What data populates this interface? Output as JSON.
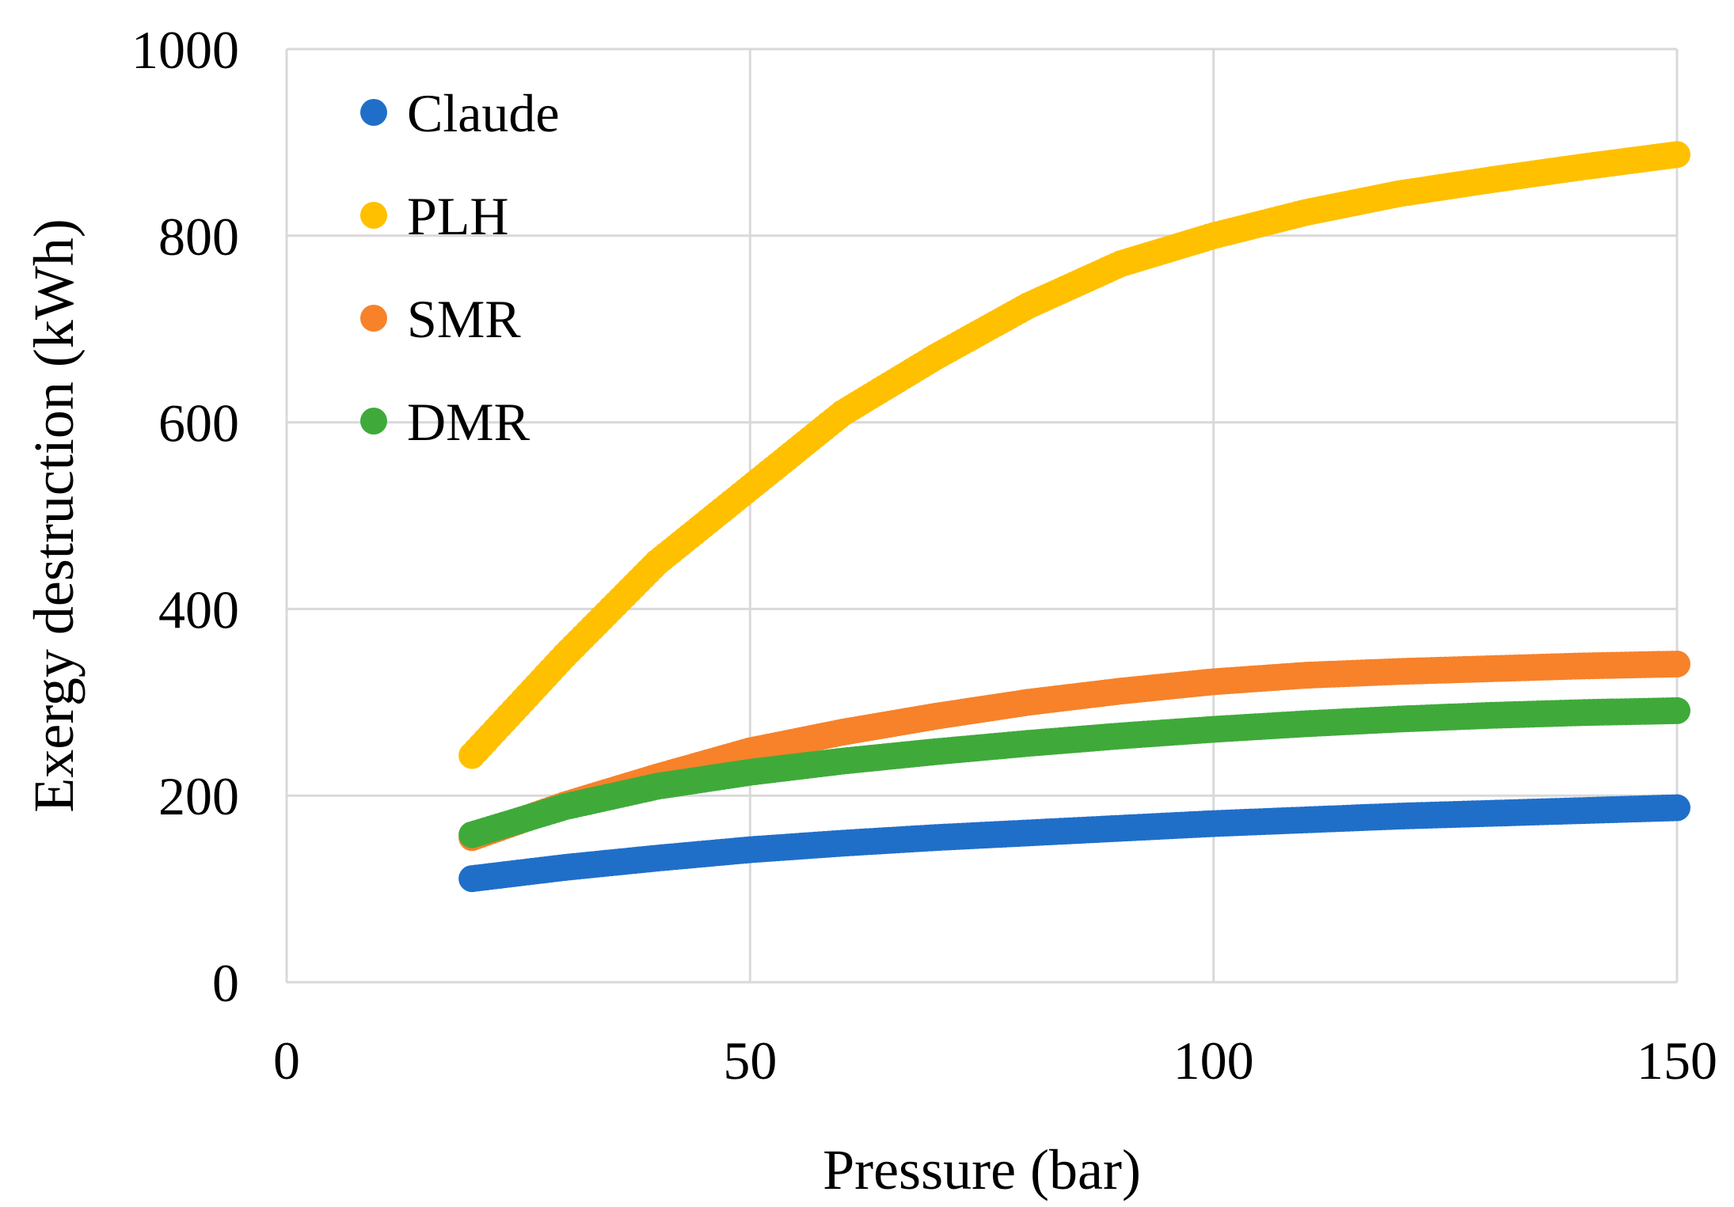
{
  "chart_data": {
    "type": "scatter",
    "title": "",
    "xlabel": "Pressure (bar)",
    "ylabel": "Exergy destruction (kWh)",
    "xlim": [
      0,
      150
    ],
    "ylim": [
      0,
      1000
    ],
    "xticks": [
      0,
      50,
      100,
      150
    ],
    "yticks": [
      0,
      200,
      400,
      600,
      800,
      1000
    ],
    "grid": true,
    "legend_position": "top-left",
    "x": [
      20,
      30,
      40,
      50,
      60,
      70,
      80,
      90,
      100,
      110,
      120,
      130,
      140,
      150
    ],
    "series": [
      {
        "name": "Claude",
        "color": "#1F6FC9",
        "values": [
          111,
          123,
          133,
          142,
          149,
          155,
          160,
          165,
          170,
          174,
          178,
          181,
          184,
          187
        ]
      },
      {
        "name": "PLH",
        "color": "#FFC000",
        "values": [
          243,
          350,
          450,
          530,
          610,
          670,
          725,
          770,
          800,
          825,
          845,
          860,
          874,
          887
        ]
      },
      {
        "name": "SMR",
        "color": "#F7822A",
        "values": [
          155,
          190,
          220,
          248,
          268,
          285,
          300,
          312,
          322,
          329,
          333,
          336,
          339,
          341
        ]
      },
      {
        "name": "DMR",
        "color": "#3FAA3A",
        "values": [
          158,
          188,
          210,
          225,
          237,
          247,
          256,
          264,
          271,
          277,
          282,
          286,
          289,
          291
        ]
      }
    ]
  }
}
